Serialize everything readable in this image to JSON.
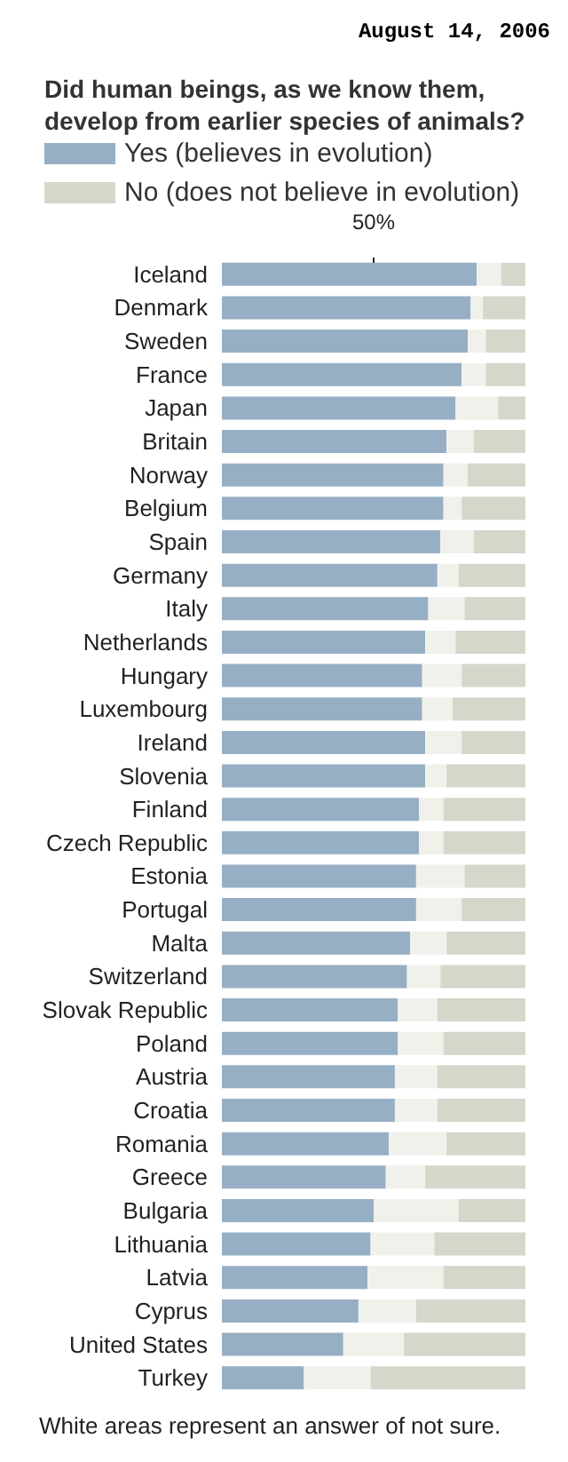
{
  "chart_data": {
    "type": "bar",
    "orientation": "horizontal",
    "stacked": true,
    "title": "Did human beings, as we know them, develop from earlier species of animals?",
    "annotations": [
      "August 14, 2006",
      "White areas represent an answer of not sure."
    ],
    "categories": [
      "Iceland",
      "Denmark",
      "Sweden",
      "France",
      "Japan",
      "Britain",
      "Norway",
      "Belgium",
      "Spain",
      "Germany",
      "Italy",
      "Netherlands",
      "Hungary",
      "Luxembourg",
      "Ireland",
      "Slovenia",
      "Finland",
      "Czech Republic",
      "Estonia",
      "Portugal",
      "Malta",
      "Switzerland",
      "Slovak Republic",
      "Poland",
      "Austria",
      "Croatia",
      "Romania",
      "Greece",
      "Bulgaria",
      "Lithuania",
      "Latvia",
      "Cyprus",
      "United States",
      "Turkey"
    ],
    "series": [
      {
        "name": "Yes (believes in evolution)",
        "color": "#97afc4",
        "values": [
          84,
          82,
          81,
          79,
          77,
          74,
          73,
          73,
          72,
          71,
          68,
          67,
          66,
          66,
          67,
          67,
          65,
          65,
          64,
          64,
          62,
          61,
          58,
          58,
          57,
          57,
          55,
          54,
          50,
          49,
          48,
          45,
          40,
          27
        ]
      },
      {
        "color": "#f1f1ec",
        "values": [
          8,
          4,
          6,
          8,
          14,
          9,
          8,
          6,
          11,
          7,
          12,
          10,
          13,
          10,
          12,
          7,
          8,
          8,
          16,
          15,
          12,
          11,
          13,
          15,
          14,
          14,
          19,
          13,
          28,
          21,
          25,
          19,
          20,
          22
        ]
      },
      {
        "name": "No (does not believe in evolution)",
        "color": "#d6d6cb",
        "values": [
          8,
          14,
          13,
          13,
          9,
          17,
          19,
          21,
          17,
          22,
          20,
          23,
          21,
          24,
          21,
          26,
          27,
          27,
          20,
          21,
          26,
          28,
          29,
          27,
          29,
          29,
          26,
          33,
          22,
          30,
          27,
          36,
          40,
          51
        ]
      }
    ],
    "xlim": [
      0,
      100
    ],
    "xticks": [
      {
        "value": 50,
        "label": "50%"
      }
    ],
    "grid": false,
    "legend": "top left"
  }
}
